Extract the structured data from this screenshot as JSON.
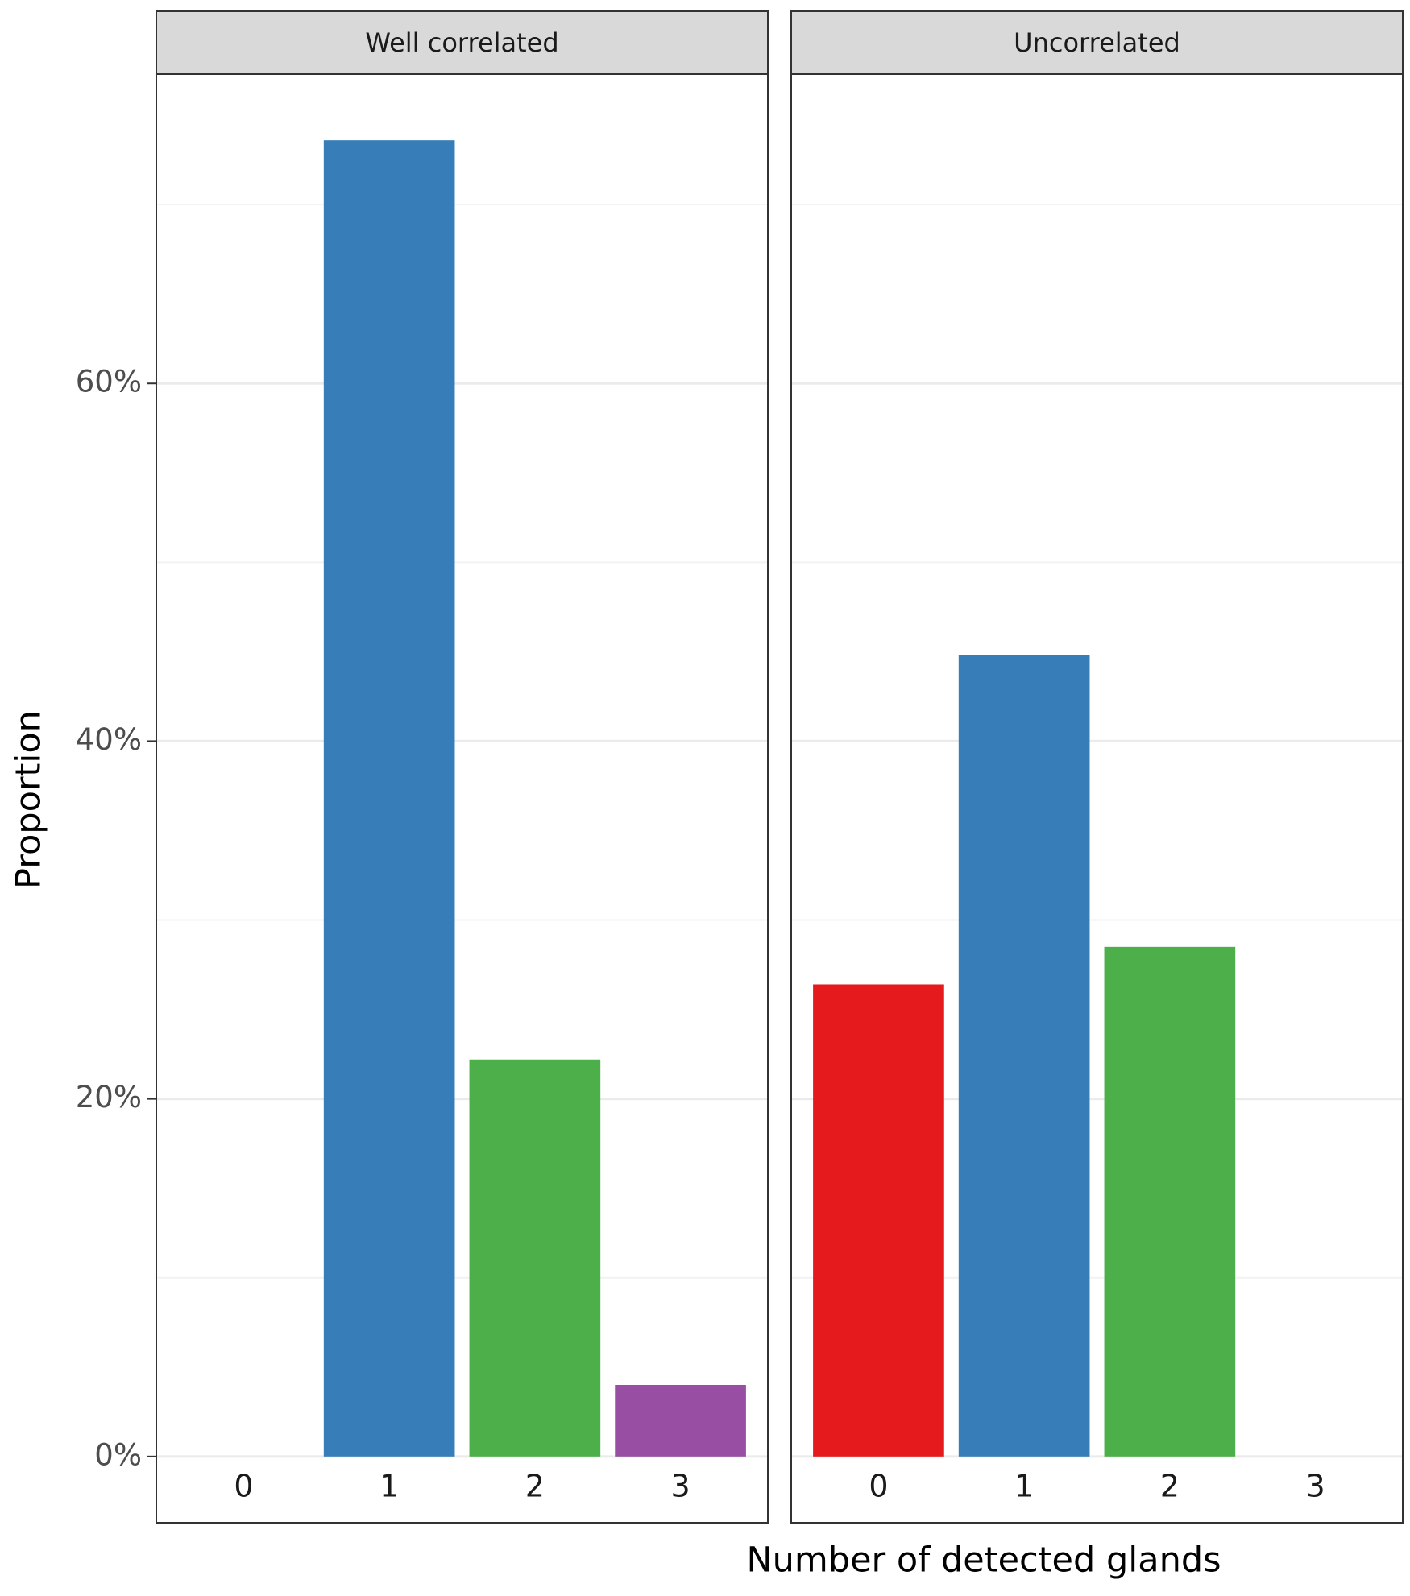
{
  "chart_data": {
    "type": "bar",
    "y_label": "Proportion",
    "x_label": "Number of detected glands",
    "categories": [
      "0",
      "1",
      "2",
      "3"
    ],
    "colors": [
      "#e41a1c",
      "#377eb8",
      "#4daf4a",
      "#984ea3"
    ],
    "ylim": [
      -3.7,
      77.3
    ],
    "yticks": [
      {
        "value": 0,
        "label": "0%"
      },
      {
        "value": 20,
        "label": "20%"
      },
      {
        "value": 40,
        "label": "40%"
      },
      {
        "value": 60,
        "label": "60%"
      }
    ],
    "minor_yticks": [
      10,
      30,
      50,
      70
    ],
    "grid": true,
    "facets": [
      {
        "title": "Well correlated",
        "values": [
          0,
          73.6,
          22.2,
          4.0
        ]
      },
      {
        "title": "Uncorrelated",
        "values": [
          26.4,
          44.8,
          28.5,
          0
        ]
      }
    ]
  }
}
